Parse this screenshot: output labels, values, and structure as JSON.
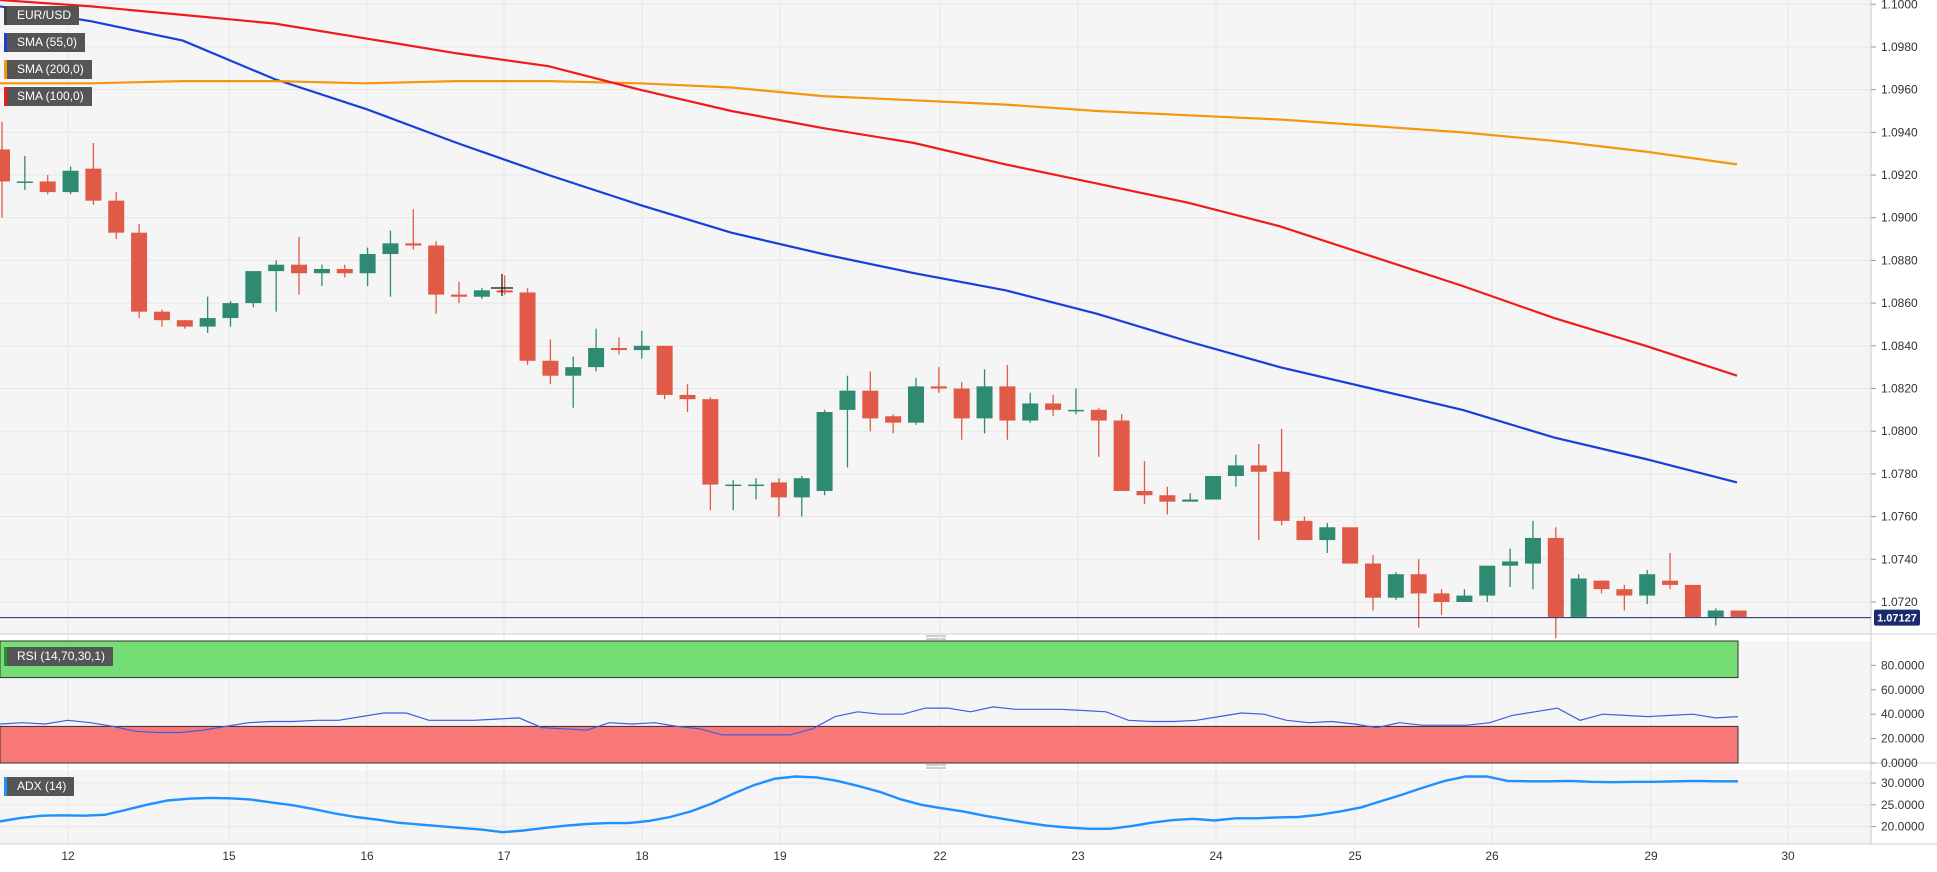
{
  "colors": {
    "bull": "#2e8b72",
    "bear": "#e05a47",
    "sma55": "#1a3fd6",
    "sma200": "#f5960f",
    "sma100": "#ee1c1c",
    "rsi_line": "#3b5fe0",
    "adx_line": "#1e90ff",
    "rsi_upper_fill": "#74dd74",
    "rsi_lower_fill": "#f87878",
    "price_line": "#1a2a6c"
  },
  "legend": {
    "symbol": "EUR/USD",
    "sma55": "SMA (55,0)",
    "sma200": "SMA (200,0)",
    "sma100": "SMA (100,0)",
    "rsi": "RSI (14,70,30,1)",
    "adx": "ADX (14)"
  },
  "current_price_label": "1.07127",
  "chart_data": [
    {
      "type": "candlestick",
      "title": "EUR/USD",
      "ylim": [
        1.0705,
        1.1002
      ],
      "y_ticks": [
        "1.1000",
        "1.0980",
        "1.0960",
        "1.0940",
        "1.0920",
        "1.0900",
        "1.0880",
        "1.0860",
        "1.0840",
        "1.0820",
        "1.0800",
        "1.0780",
        "1.0760",
        "1.0740",
        "1.0720"
      ],
      "x_ticks": [
        "12",
        "15",
        "16",
        "17",
        "18",
        "19",
        "22",
        "23",
        "24",
        "25",
        "26",
        "29",
        "30"
      ],
      "current_price": 1.07127,
      "candles": [
        [
          1.0932,
          1.0945,
          1.09,
          1.0917
        ],
        [
          1.0917,
          1.0929,
          1.0913,
          1.0917
        ],
        [
          1.0917,
          1.092,
          1.0911,
          1.0912
        ],
        [
          1.0912,
          1.0924,
          1.0911,
          1.0922
        ],
        [
          1.0923,
          1.0935,
          1.0906,
          1.0908
        ],
        [
          1.0908,
          1.0912,
          1.089,
          1.0893
        ],
        [
          1.0893,
          1.0897,
          1.0853,
          1.0856
        ],
        [
          1.0856,
          1.0857,
          1.0849,
          1.0852
        ],
        [
          1.0852,
          1.0852,
          1.0848,
          1.0849
        ],
        [
          1.0849,
          1.0863,
          1.0846,
          1.0853
        ],
        [
          1.0853,
          1.0861,
          1.0849,
          1.086
        ],
        [
          1.086,
          1.0875,
          1.0858,
          1.0875
        ],
        [
          1.0875,
          1.088,
          1.0856,
          1.0878
        ],
        [
          1.0878,
          1.0891,
          1.0864,
          1.0874
        ],
        [
          1.0874,
          1.0878,
          1.0868,
          1.0876
        ],
        [
          1.0876,
          1.0878,
          1.0872,
          1.0874
        ],
        [
          1.0874,
          1.0886,
          1.0868,
          1.0883
        ],
        [
          1.0883,
          1.0894,
          1.0863,
          1.0888
        ],
        [
          1.0888,
          1.0904,
          1.0885,
          1.0887
        ],
        [
          1.0887,
          1.0889,
          1.0855,
          1.0864
        ],
        [
          1.0864,
          1.087,
          1.086,
          1.0863
        ],
        [
          1.0863,
          1.0867,
          1.0862,
          1.0866
        ],
        [
          1.0866,
          1.0873,
          1.0864,
          1.0865
        ],
        [
          1.0865,
          1.0867,
          1.0831,
          1.0833
        ],
        [
          1.0833,
          1.0843,
          1.0822,
          1.0826
        ],
        [
          1.0826,
          1.0835,
          1.0811,
          1.083
        ],
        [
          1.083,
          1.0848,
          1.0828,
          1.0839
        ],
        [
          1.0839,
          1.0844,
          1.0836,
          1.0838
        ],
        [
          1.0838,
          1.0847,
          1.0834,
          1.084
        ],
        [
          1.084,
          1.084,
          1.0815,
          1.0817
        ],
        [
          1.0817,
          1.0822,
          1.0809,
          1.0815
        ],
        [
          1.0815,
          1.0816,
          1.0763,
          1.0775
        ],
        [
          1.0775,
          1.0777,
          1.0763,
          1.0775
        ],
        [
          1.0775,
          1.0778,
          1.0768,
          1.0775
        ],
        [
          1.0776,
          1.0778,
          1.076,
          1.0769
        ],
        [
          1.0769,
          1.0779,
          1.076,
          1.0778
        ],
        [
          1.0772,
          1.081,
          1.077,
          1.0809
        ],
        [
          1.081,
          1.0826,
          1.0783,
          1.0819
        ],
        [
          1.0819,
          1.0828,
          1.08,
          1.0806
        ],
        [
          1.0807,
          1.0808,
          1.0799,
          1.0804
        ],
        [
          1.0804,
          1.0825,
          1.0803,
          1.0821
        ],
        [
          1.0821,
          1.083,
          1.0818,
          1.082
        ],
        [
          1.082,
          1.0823,
          1.0796,
          1.0806
        ],
        [
          1.0806,
          1.0829,
          1.0799,
          1.0821
        ],
        [
          1.0821,
          1.0831,
          1.0796,
          1.0805
        ],
        [
          1.0805,
          1.0818,
          1.0804,
          1.0813
        ],
        [
          1.0813,
          1.0817,
          1.0807,
          1.081
        ],
        [
          1.081,
          1.082,
          1.0808,
          1.081
        ],
        [
          1.081,
          1.0811,
          1.0788,
          1.0805
        ],
        [
          1.0805,
          1.0808,
          1.0773,
          1.0772
        ],
        [
          1.0772,
          1.0786,
          1.0766,
          1.077
        ],
        [
          1.077,
          1.0774,
          1.0761,
          1.0767
        ],
        [
          1.0767,
          1.0771,
          1.0767,
          1.0768
        ],
        [
          1.0768,
          1.0779,
          1.0769,
          1.0779
        ],
        [
          1.0779,
          1.0789,
          1.0774,
          1.0784
        ],
        [
          1.0784,
          1.0794,
          1.0749,
          1.0781
        ],
        [
          1.0781,
          1.0801,
          1.0756,
          1.0758
        ],
        [
          1.0758,
          1.076,
          1.0749,
          1.0749
        ],
        [
          1.0749,
          1.0757,
          1.0743,
          1.0755
        ],
        [
          1.0755,
          1.0755,
          1.0738,
          1.0738
        ],
        [
          1.0738,
          1.0742,
          1.0716,
          1.0722
        ],
        [
          1.0722,
          1.0734,
          1.0721,
          1.0733
        ],
        [
          1.0733,
          1.074,
          1.0708,
          1.0724
        ],
        [
          1.0724,
          1.0726,
          1.0714,
          1.072
        ],
        [
          1.072,
          1.0726,
          1.072,
          1.0723
        ],
        [
          1.0723,
          1.0737,
          1.072,
          1.0737
        ],
        [
          1.0737,
          1.0745,
          1.0727,
          1.0739
        ],
        [
          1.0738,
          1.0758,
          1.0726,
          1.075
        ],
        [
          1.075,
          1.0755,
          1.0703,
          1.0713
        ],
        [
          1.0713,
          1.0733,
          1.0713,
          1.0731
        ],
        [
          1.073,
          1.073,
          1.0724,
          1.0726
        ],
        [
          1.0726,
          1.0728,
          1.0716,
          1.0723
        ],
        [
          1.0723,
          1.0735,
          1.0719,
          1.0733
        ],
        [
          1.073,
          1.0743,
          1.0726,
          1.0728
        ],
        [
          1.0728,
          1.0728,
          1.0713,
          1.0713
        ],
        [
          1.0713,
          1.0717,
          1.0709,
          1.0716
        ],
        [
          1.0716,
          1.0716,
          1.0713,
          1.0713
        ]
      ],
      "series": [
        {
          "name": "SMA (55,0)",
          "values": [
            1.0999,
            1.0992,
            1.0983,
            1.0965,
            1.0951,
            1.0935,
            1.092,
            1.0906,
            1.0893,
            1.0883,
            1.0874,
            1.0866,
            1.0855,
            1.0842,
            1.083,
            1.082,
            1.081,
            1.0797,
            1.0787,
            1.0776
          ]
        },
        {
          "name": "SMA (200,0)",
          "values": [
            1.0963,
            1.0963,
            1.0964,
            1.0964,
            1.0963,
            1.0964,
            1.0964,
            1.0963,
            1.0961,
            1.0957,
            1.0955,
            1.0953,
            1.095,
            1.0948,
            1.0946,
            1.0943,
            1.094,
            1.0936,
            1.0931,
            1.0925
          ]
        },
        {
          "name": "SMA (100,0)",
          "values": [
            1.1002,
            1.0999,
            1.0995,
            1.0991,
            1.0984,
            1.0977,
            1.0971,
            1.096,
            1.095,
            1.0942,
            1.0935,
            1.0925,
            1.0916,
            1.0907,
            1.0896,
            1.0882,
            1.0868,
            1.0853,
            1.084,
            1.0826
          ]
        }
      ]
    },
    {
      "type": "line",
      "title": "RSI (14,70,30,1)",
      "ylim": [
        0,
        100
      ],
      "y_ticks": [
        "80.0000",
        "60.0000",
        "40.0000",
        "20.0000",
        "0.0000"
      ],
      "bands": {
        "upper": 70,
        "lower": 30
      },
      "values": [
        32,
        33,
        32,
        35,
        33,
        30,
        26,
        25,
        25,
        27,
        30,
        33,
        34,
        34,
        35,
        35,
        38,
        41,
        41,
        35,
        35,
        35,
        36,
        37,
        29,
        28,
        27,
        33,
        32,
        33,
        30,
        28,
        23,
        23,
        23,
        23,
        28,
        38,
        42,
        40,
        40,
        45,
        45,
        42,
        46,
        44,
        44,
        44,
        43,
        42,
        35,
        34,
        34,
        35,
        38,
        41,
        40,
        35,
        33,
        34,
        32,
        29,
        33,
        31,
        31,
        31,
        33,
        39,
        42,
        45,
        35,
        40,
        39,
        38,
        39,
        40,
        37,
        38
      ]
    },
    {
      "type": "line",
      "title": "ADX (14)",
      "ylim": [
        16,
        33
      ],
      "y_ticks": [
        "30.0000",
        "25.0000",
        "20.0000"
      ],
      "values": [
        21.2,
        22.0,
        22.5,
        22.6,
        22.5,
        22.7,
        23.8,
        25.0,
        26.0,
        26.4,
        26.6,
        26.5,
        26.2,
        25.5,
        24.9,
        24.0,
        23.0,
        22.2,
        21.6,
        20.9,
        20.5,
        20.1,
        19.7,
        19.3,
        18.7,
        19.1,
        19.7,
        20.2,
        20.6,
        20.8,
        20.8,
        21.3,
        22.2,
        23.5,
        25.3,
        27.5,
        29.5,
        31.0,
        31.5,
        31.3,
        30.5,
        29.3,
        28.0,
        26.3,
        25.0,
        24.2,
        23.5,
        22.5,
        21.7,
        20.9,
        20.2,
        19.8,
        19.5,
        19.5,
        20.1,
        20.9,
        21.5,
        21.8,
        21.4,
        21.9,
        21.9,
        22.1,
        22.2,
        22.7,
        23.5,
        24.4,
        25.9,
        27.4,
        29.0,
        30.5,
        31.5,
        31.5,
        30.5,
        30.4,
        30.4,
        30.5,
        30.3,
        30.2,
        30.3,
        30.3,
        30.4,
        30.5,
        30.4,
        30.4
      ]
    }
  ]
}
